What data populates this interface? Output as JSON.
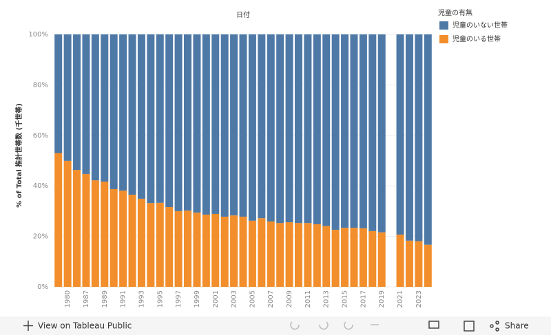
{
  "chart_data": {
    "type": "stacked_bar_100",
    "header": "日付",
    "y_axis_label": "% of Total 推計世帯数 (千世帯)",
    "legend_title": "児童の有無",
    "categories": [
      null,
      "1980",
      null,
      "1987",
      null,
      "1989",
      null,
      "1991",
      null,
      "1993",
      null,
      "1995",
      null,
      "1997",
      null,
      "1999",
      null,
      "2001",
      null,
      "2003",
      null,
      "2005",
      null,
      "2007",
      null,
      "2009",
      null,
      "2011",
      null,
      "2013",
      null,
      "2015",
      null,
      "2017",
      null,
      "2019",
      null,
      "2021",
      null,
      "2023",
      null
    ],
    "series": [
      {
        "name": "児童のいない世帯",
        "color": "#4e79a7",
        "values": [
          47.0,
          50.1,
          53.7,
          55.3,
          57.8,
          58.3,
          61.3,
          61.9,
          63.5,
          65.1,
          66.8,
          66.7,
          68.4,
          70.0,
          69.8,
          70.6,
          71.4,
          71.1,
          72.2,
          71.7,
          72.2,
          73.8,
          72.8,
          74.1,
          74.7,
          74.4,
          74.7,
          74.7,
          75.2,
          75.9,
          77.4,
          76.6,
          76.6,
          76.8,
          77.9,
          78.4,
          null,
          79.3,
          81.7,
          81.9,
          83.3
        ]
      },
      {
        "name": "児童のいる世帯",
        "color": "#f28e2b",
        "values": [
          53.0,
          49.9,
          46.3,
          44.7,
          42.2,
          41.7,
          38.7,
          38.1,
          36.5,
          34.9,
          33.2,
          33.3,
          31.6,
          30.0,
          30.2,
          29.4,
          28.6,
          28.9,
          27.8,
          28.3,
          27.8,
          26.2,
          27.2,
          25.9,
          25.3,
          25.6,
          25.3,
          25.3,
          24.8,
          24.1,
          22.6,
          23.4,
          23.4,
          23.2,
          22.1,
          21.6,
          null,
          20.7,
          18.3,
          18.1,
          16.7
        ]
      }
    ],
    "ylim": [
      0,
      100
    ],
    "yticks": [
      {
        "value": 0,
        "label": "0%"
      },
      {
        "value": 20,
        "label": "20%"
      },
      {
        "value": 40,
        "label": "40%"
      },
      {
        "value": 60,
        "label": "60%"
      },
      {
        "value": 80,
        "label": "80%"
      },
      {
        "value": 100,
        "label": "100%"
      }
    ],
    "grid": true
  },
  "toolbar": {
    "view": "View on Tableau Public",
    "share": "Share"
  }
}
